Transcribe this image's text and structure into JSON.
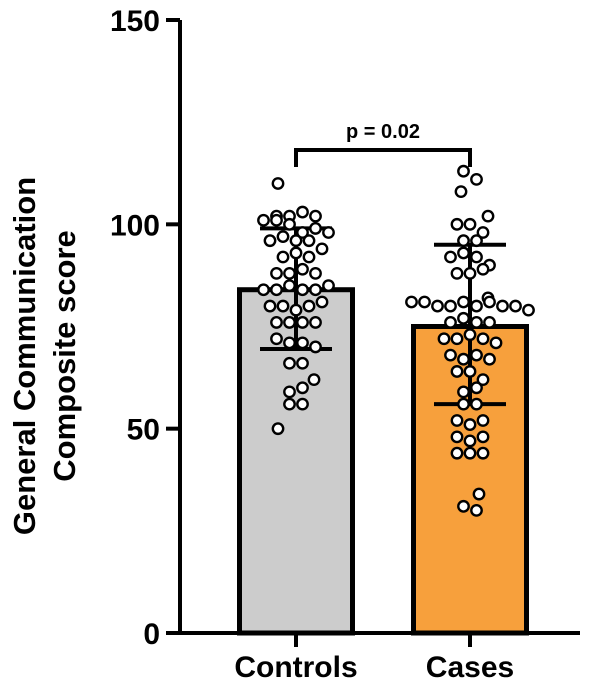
{
  "chart_data": {
    "type": "bar",
    "title": "",
    "xlabel": "",
    "ylabel_lines": [
      "General Communication",
      "Composite score"
    ],
    "ylim": [
      0,
      150
    ],
    "yticks": [
      0,
      50,
      100,
      150
    ],
    "categories": [
      "Controls",
      "Cases"
    ],
    "values": [
      84,
      75
    ],
    "error_low": [
      69.5,
      56
    ],
    "error_high": [
      99,
      95
    ],
    "bar_colors": [
      "#cccccc",
      "#f7a03c"
    ],
    "annotation": {
      "text": "p = 0.02",
      "between": [
        "Controls",
        "Cases"
      ]
    },
    "points": [
      [
        110,
        102,
        102,
        101,
        103,
        101,
        100,
        102,
        98,
        96,
        99,
        97,
        96,
        98,
        96,
        92,
        93,
        92,
        94,
        88,
        88,
        89,
        88,
        84,
        84,
        85,
        84,
        84,
        85,
        80,
        80,
        79,
        80,
        81,
        76,
        76,
        76,
        76,
        72,
        71,
        71,
        70,
        66,
        66,
        62,
        59,
        60,
        56,
        56,
        50
      ],
      [
        113,
        111,
        108,
        100,
        100,
        102,
        98,
        96,
        96,
        92,
        93,
        92,
        90,
        88,
        88,
        89,
        82,
        81,
        81,
        80,
        80,
        81,
        80,
        81,
        80,
        80,
        79,
        76,
        77,
        76,
        76,
        72,
        72,
        73,
        72,
        71,
        68,
        67,
        68,
        67,
        64,
        64,
        62,
        59,
        60,
        56,
        56,
        52,
        51,
        52,
        48,
        47,
        48,
        44,
        44,
        44,
        34,
        31,
        30
      ]
    ]
  }
}
